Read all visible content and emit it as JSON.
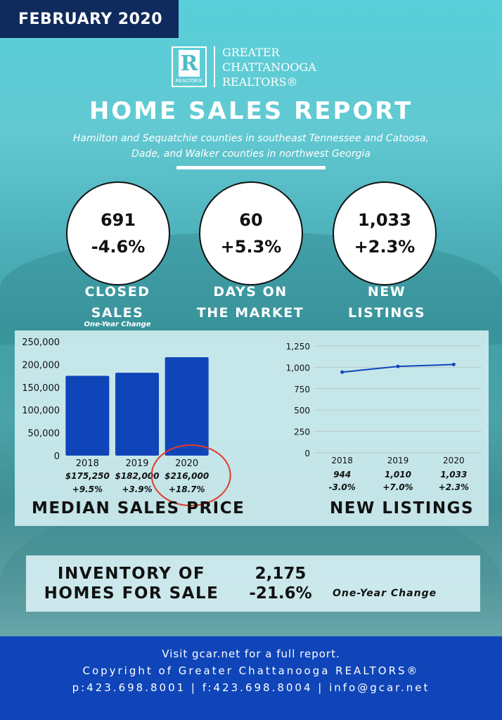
{
  "header": {
    "period": "FEBRUARY 2020"
  },
  "logo": {
    "mark_letter": "R",
    "mark_caption": "REALTOR®",
    "line1": "GREATER",
    "line2": "CHATTANOOGA",
    "line3": "REALTORS®"
  },
  "report": {
    "title": "HOME SALES REPORT",
    "subtitle_line1": "Hamilton and Sequatchie counties in southeast Tennessee and Catoosa,",
    "subtitle_line2": "Dade, and Walker counties in northwest Georgia"
  },
  "stats": [
    {
      "value": "691",
      "change": "-4.6%",
      "label_line1": "CLOSED",
      "label_line2": "SALES"
    },
    {
      "value": "60",
      "change": "+5.3%",
      "label_line1": "DAYS ON",
      "label_line2": "THE MARKET"
    },
    {
      "value": "1,033",
      "change": "+2.3%",
      "label_line1": "NEW",
      "label_line2": "LISTINGS"
    }
  ],
  "stats_note": "One-Year Change",
  "chart_data": [
    {
      "type": "bar",
      "heading": "MEDIAN SALES PRICE",
      "categories": [
        "2018",
        "2019",
        "2020"
      ],
      "values": [
        175250,
        182000,
        216000
      ],
      "value_labels": [
        "$175,250",
        "$182,000",
        "$216,000"
      ],
      "change_labels": [
        "+9.5%",
        "+3.9%",
        "+18.7%"
      ],
      "ylim": [
        0,
        250000
      ],
      "yticks": [
        0,
        50000,
        100000,
        150000,
        200000,
        250000
      ],
      "ytick_labels": [
        "0",
        "50,000",
        "100,000",
        "150,000",
        "200,000",
        "250,000"
      ],
      "bar_color": "#0f45b8",
      "highlight": "2020"
    },
    {
      "type": "line",
      "heading": "NEW LISTINGS",
      "categories": [
        "2018",
        "2019",
        "2020"
      ],
      "values": [
        944,
        1010,
        1033
      ],
      "value_labels": [
        "944",
        "1,010",
        "1,033"
      ],
      "change_labels": [
        "-3.0%",
        "+7.0%",
        "+2.3%"
      ],
      "ylim": [
        0,
        1250
      ],
      "yticks": [
        0,
        250,
        500,
        750,
        1000,
        1250
      ],
      "ytick_labels": [
        "0",
        "250",
        "500",
        "750",
        "1,000",
        "1,250"
      ],
      "line_color": "#0f45b8",
      "grid": true
    }
  ],
  "inventory": {
    "label_line1": "INVENTORY OF",
    "label_line2": "HOMES FOR SALE",
    "value": "2,175",
    "change": "-21.6%",
    "note": "One-Year Change"
  },
  "footer": {
    "line1": "Visit gcar.net for a full report.",
    "line2": "Copyright of Greater Chattanooga REALTORS®",
    "line3": "p:423.698.8001 | f:423.698.8004 | info@gcar.net"
  },
  "colors": {
    "navy": "#0f2a5c",
    "blue": "#0f45b8",
    "highlight_circle": "#e03a2a"
  }
}
